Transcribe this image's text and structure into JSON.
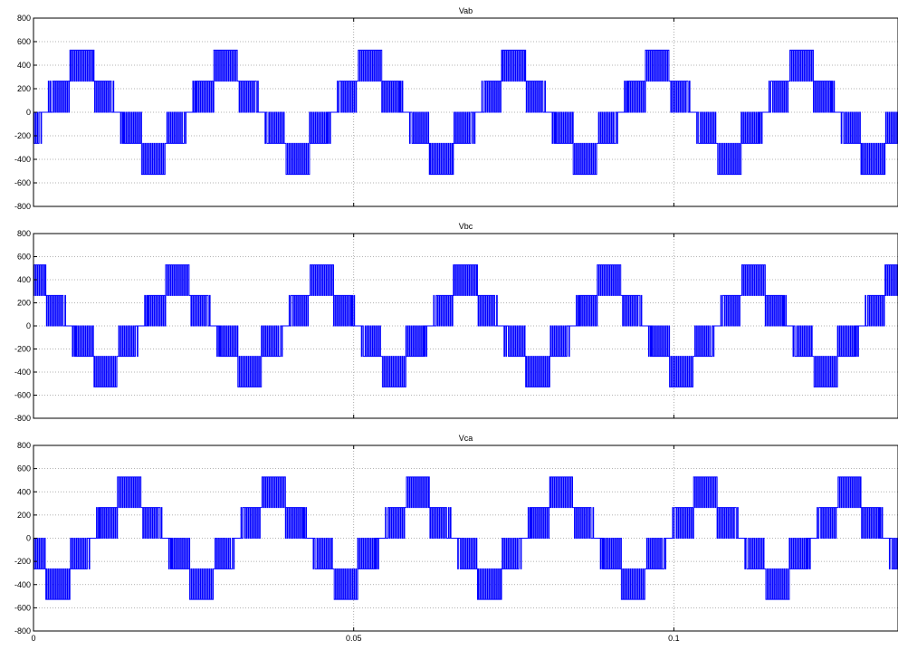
{
  "chart_data": [
    {
      "type": "line",
      "title": "Vab",
      "xlim": [
        0,
        0.135
      ],
      "ylim": [
        -800,
        800
      ],
      "yticks": [
        "800",
        "600",
        "400",
        "200",
        "0",
        "-200",
        "-400",
        "-600",
        "-800"
      ],
      "xticks": [],
      "grid": true,
      "color": "#0000ff",
      "fundamental_frequency_hz": 44.5,
      "phase_deg": -30,
      "levels": [
        -528,
        -264,
        0,
        264,
        528
      ],
      "values_summary": {
        "max": 528,
        "min": -528
      }
    },
    {
      "type": "line",
      "title": "Vbc",
      "xlim": [
        0,
        0.135
      ],
      "ylim": [
        -800,
        800
      ],
      "yticks": [
        "800",
        "600",
        "400",
        "200",
        "0",
        "-200",
        "-400",
        "-600",
        "-800"
      ],
      "xticks": [],
      "grid": true,
      "color": "#0000ff",
      "fundamental_frequency_hz": 44.5,
      "phase_deg": 90,
      "levels": [
        -528,
        -264,
        0,
        264,
        528
      ],
      "values_summary": {
        "max": 528,
        "min": -528
      }
    },
    {
      "type": "line",
      "title": "Vca",
      "xlim": [
        0,
        0.135
      ],
      "ylim": [
        -800,
        800
      ],
      "yticks": [
        "800",
        "600",
        "400",
        "200",
        "0",
        "-200",
        "-400",
        "-600",
        "-800"
      ],
      "xticks": [
        "0",
        "0.05",
        "0.1"
      ],
      "xtick_values": [
        0,
        0.05,
        0.1
      ],
      "grid": true,
      "color": "#0000ff",
      "fundamental_frequency_hz": 44.5,
      "phase_deg": 210,
      "levels": [
        -528,
        -264,
        0,
        264,
        528
      ],
      "values_summary": {
        "max": 528,
        "min": -528
      }
    }
  ]
}
